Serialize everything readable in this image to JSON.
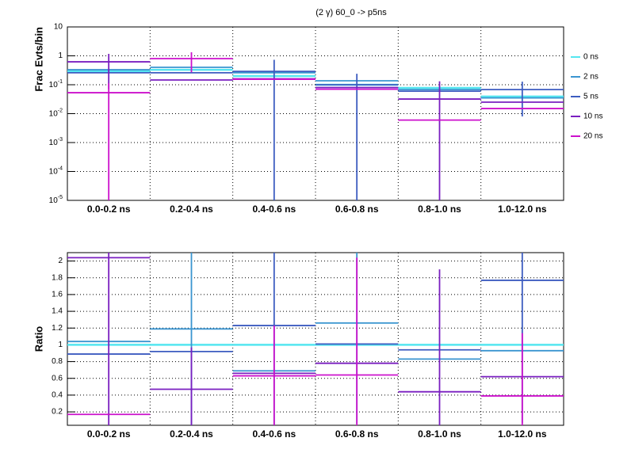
{
  "chart_data": [
    {
      "type": "histogram",
      "title": "(2 γ) 60_0 -> p5ns",
      "y_label": "Frac Evts/bin",
      "log_y": true,
      "grid": true,
      "legend": "right",
      "categories": [
        "0.0-0.2 ns",
        "0.2-0.4 ns",
        "0.4-0.6 ns",
        "0.6-0.8 ns",
        "0.8-1.0 ns",
        "1.0-12.0 ns"
      ],
      "ylim": [
        1e-05,
        10
      ],
      "yticks": [
        {
          "value": 1e-05,
          "label": "10",
          "exponent": "-5"
        },
        {
          "value": 0.0001,
          "label": "10",
          "exponent": "-4"
        },
        {
          "value": 0.001,
          "label": "10",
          "exponent": "-3"
        },
        {
          "value": 0.01,
          "label": "10",
          "exponent": "-2"
        },
        {
          "value": 0.1,
          "label": "10",
          "exponent": "-1"
        },
        1,
        10
      ],
      "series": [
        {
          "name": "0 ns",
          "color": "#55e6f0",
          "values": [
            0.29,
            0.33,
            0.2,
            0.1,
            0.078,
            0.039
          ],
          "errors": [
            null,
            null,
            null,
            null,
            null,
            null
          ]
        },
        {
          "name": "2 ns",
          "color": "#3a95d0",
          "values": [
            0.33,
            0.4,
            0.26,
            0.137,
            0.068,
            0.035
          ],
          "errors": [
            null,
            null,
            null,
            null,
            null,
            null
          ]
        },
        {
          "name": "5 ns",
          "color": "#3d5cc0",
          "values": [
            0.26,
            0.26,
            0.29,
            0.1,
            0.06,
            0.068
          ],
          "errors": [
            null,
            null,
            0.44,
            0.14,
            null,
            0.06
          ]
        },
        {
          "name": "10 ns",
          "color": "#7a1fc0",
          "values": [
            0.62,
            0.146,
            0.16,
            0.08,
            0.032,
            0.025
          ],
          "errors": [
            0.55,
            null,
            null,
            null,
            0.1,
            null
          ]
        },
        {
          "name": "20 ns",
          "color": "#cc11cc",
          "values": [
            0.053,
            0.8,
            0.155,
            0.07,
            0.006,
            0.015
          ],
          "errors": [
            0.06,
            0.53,
            null,
            null,
            null,
            null
          ]
        }
      ]
    },
    {
      "type": "histogram",
      "y_label": "Ratio",
      "log_y": false,
      "grid": true,
      "categories": [
        "0.0-0.2 ns",
        "0.2-0.4 ns",
        "0.4-0.6 ns",
        "0.6-0.8 ns",
        "0.8-1.0 ns",
        "1.0-12.0 ns"
      ],
      "ylim": [
        0.04,
        2.1
      ],
      "yticks": [
        0.2,
        0.4,
        0.6,
        0.8,
        1,
        1.2,
        1.4,
        1.6,
        1.8,
        2
      ],
      "series": [
        {
          "name": "0 ns",
          "color": "#55e6f0",
          "values": [
            1,
            1,
            1,
            1,
            1,
            1
          ],
          "errors": [
            null,
            null,
            null,
            null,
            null,
            null
          ]
        },
        {
          "name": "2 ns",
          "color": "#3a95d0",
          "values": [
            1.04,
            1.19,
            0.69,
            1.26,
            0.83,
            0.93
          ],
          "errors": [
            null,
            1.2,
            null,
            1.2,
            null,
            null
          ]
        },
        {
          "name": "5 ns",
          "color": "#3d5cc0",
          "values": [
            0.89,
            0.92,
            1.23,
            1.01,
            0.94,
            1.77
          ],
          "errors": [
            null,
            null,
            1.2,
            null,
            null,
            1.7
          ]
        },
        {
          "name": "10 ns",
          "color": "#7a1fc0",
          "values": [
            2.04,
            0.47,
            0.66,
            0.78,
            0.44,
            0.62
          ],
          "errors": [
            2,
            0.5,
            null,
            null,
            1.46,
            null
          ]
        },
        {
          "name": "20 ns",
          "color": "#cc11cc",
          "values": [
            0.17,
            null,
            0.63,
            0.64,
            null,
            0.39
          ],
          "errors": [
            null,
            null,
            0.6,
            1.4,
            null,
            0.75
          ]
        }
      ]
    }
  ]
}
